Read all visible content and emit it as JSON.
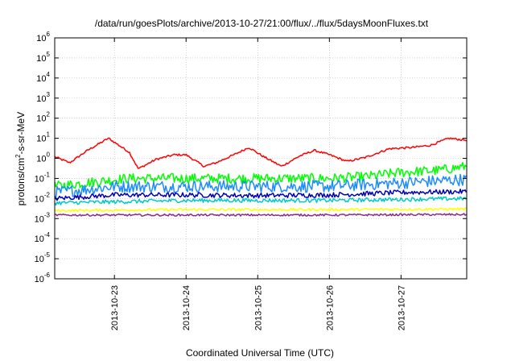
{
  "chart_data": {
    "type": "line",
    "title": "/data/run/goesPlots/archive/2013-10-27/21:00/flux/../flux/5daysMoonFluxes.txt",
    "xlabel": "Coordinated Universal Time (UTC)",
    "ylabel": {
      "base": "protons/cm",
      "sup": "2",
      "rest": "-s-sr-MeV"
    },
    "y_scale": "log",
    "ylim": [
      1e-06,
      1000000.0
    ],
    "y_ticks": [
      {
        "exp": "-6",
        "value": 1e-06
      },
      {
        "exp": "-5",
        "value": 1e-05
      },
      {
        "exp": "-4",
        "value": 0.0001
      },
      {
        "exp": "-3",
        "value": 0.001
      },
      {
        "exp": "-2",
        "value": 0.01
      },
      {
        "exp": "-1",
        "value": 0.1
      },
      {
        "exp": "0",
        "value": 1
      },
      {
        "exp": "1",
        "value": 10
      },
      {
        "exp": "2",
        "value": 100
      },
      {
        "exp": "3",
        "value": 1000
      },
      {
        "exp": "4",
        "value": 10000
      },
      {
        "exp": "5",
        "value": 100000
      },
      {
        "exp": "6",
        "value": 1000000
      }
    ],
    "xlim": [
      "2013-10-22T04:00",
      "2013-10-27T22:00"
    ],
    "x_ticks": [
      {
        "label": "2013-10-23",
        "date": "2013-10-23T00:00"
      },
      {
        "label": "2013-10-24",
        "date": "2013-10-24T00:00"
      },
      {
        "label": "2013-10-25",
        "date": "2013-10-25T00:00"
      },
      {
        "label": "2013-10-26",
        "date": "2013-10-26T00:00"
      },
      {
        "label": "2013-10-27",
        "date": "2013-10-27T00:00"
      }
    ],
    "grid": true,
    "legend": "none",
    "series": [
      {
        "color": "#ff0000",
        "noise": 0.05,
        "points": [
          [
            "2013-10-22T04:00",
            1.2
          ],
          [
            "2013-10-22T09:00",
            0.6
          ],
          [
            "2013-10-22T15:00",
            2.5
          ],
          [
            "2013-10-22T22:00",
            10
          ],
          [
            "2013-10-23T05:00",
            2.0
          ],
          [
            "2013-10-23T08:00",
            0.3
          ],
          [
            "2013-10-23T14:00",
            0.9
          ],
          [
            "2013-10-23T20:00",
            1.5
          ],
          [
            "2013-10-24T00:00",
            1.5
          ],
          [
            "2013-10-24T06:00",
            0.4
          ],
          [
            "2013-10-24T10:00",
            0.6
          ],
          [
            "2013-10-24T16:00",
            1.5
          ],
          [
            "2013-10-24T21:00",
            3.5
          ],
          [
            "2013-10-25T02:00",
            1.2
          ],
          [
            "2013-10-25T08:00",
            0.4
          ],
          [
            "2013-10-25T14:00",
            1.3
          ],
          [
            "2013-10-25T19:00",
            2.5
          ],
          [
            "2013-10-26T00:00",
            1.5
          ],
          [
            "2013-10-26T06:00",
            0.7
          ],
          [
            "2013-10-26T12:00",
            1.1
          ],
          [
            "2013-10-26T20:00",
            3.0
          ],
          [
            "2013-10-27T04:00",
            3.5
          ],
          [
            "2013-10-27T10:00",
            4.5
          ],
          [
            "2013-10-27T16:00",
            10
          ],
          [
            "2013-10-27T22:00",
            8
          ]
        ]
      },
      {
        "color": "#00ff00",
        "noise": 0.25,
        "points": [
          [
            "2013-10-22T04:00",
            0.04
          ],
          [
            "2013-10-22T14:00",
            0.06
          ],
          [
            "2013-10-23T04:00",
            0.1
          ],
          [
            "2013-10-24T00:00",
            0.1
          ],
          [
            "2013-10-25T00:00",
            0.1
          ],
          [
            "2013-10-26T00:00",
            0.1
          ],
          [
            "2013-10-26T12:00",
            0.12
          ],
          [
            "2013-10-27T00:00",
            0.2
          ],
          [
            "2013-10-27T12:00",
            0.25
          ],
          [
            "2013-10-27T22:00",
            0.4
          ]
        ]
      },
      {
        "color": "#1e8cff",
        "noise": 0.3,
        "points": [
          [
            "2013-10-22T04:00",
            0.02
          ],
          [
            "2013-10-23T00:00",
            0.04
          ],
          [
            "2013-10-24T00:00",
            0.04
          ],
          [
            "2013-10-25T00:00",
            0.04
          ],
          [
            "2013-10-26T00:00",
            0.04
          ],
          [
            "2013-10-26T12:00",
            0.05
          ],
          [
            "2013-10-27T00:00",
            0.06
          ],
          [
            "2013-10-27T22:00",
            0.09
          ]
        ]
      },
      {
        "color": "#0000b4",
        "noise": 0.12,
        "points": [
          [
            "2013-10-22T04:00",
            0.01
          ],
          [
            "2013-10-23T00:00",
            0.015
          ],
          [
            "2013-10-24T00:00",
            0.015
          ],
          [
            "2013-10-25T00:00",
            0.014
          ],
          [
            "2013-10-26T00:00",
            0.015
          ],
          [
            "2013-10-27T00:00",
            0.02
          ],
          [
            "2013-10-27T22:00",
            0.022
          ]
        ]
      },
      {
        "color": "#00c8c8",
        "noise": 0.1,
        "points": [
          [
            "2013-10-22T04:00",
            0.006
          ],
          [
            "2013-10-24T00:00",
            0.008
          ],
          [
            "2013-10-26T00:00",
            0.008
          ],
          [
            "2013-10-27T22:00",
            0.01
          ]
        ]
      },
      {
        "color": "#ffff00",
        "noise": 0.06,
        "points": [
          [
            "2013-10-22T04:00",
            0.0025
          ],
          [
            "2013-10-24T00:00",
            0.0028
          ],
          [
            "2013-10-26T00:00",
            0.0028
          ],
          [
            "2013-10-27T22:00",
            0.003
          ]
        ]
      },
      {
        "color": "#8b2a8b",
        "noise": 0.05,
        "points": [
          [
            "2013-10-22T04:00",
            0.0015
          ],
          [
            "2013-10-24T00:00",
            0.0015
          ],
          [
            "2013-10-26T00:00",
            0.0015
          ],
          [
            "2013-10-27T22:00",
            0.0016
          ]
        ]
      }
    ]
  }
}
